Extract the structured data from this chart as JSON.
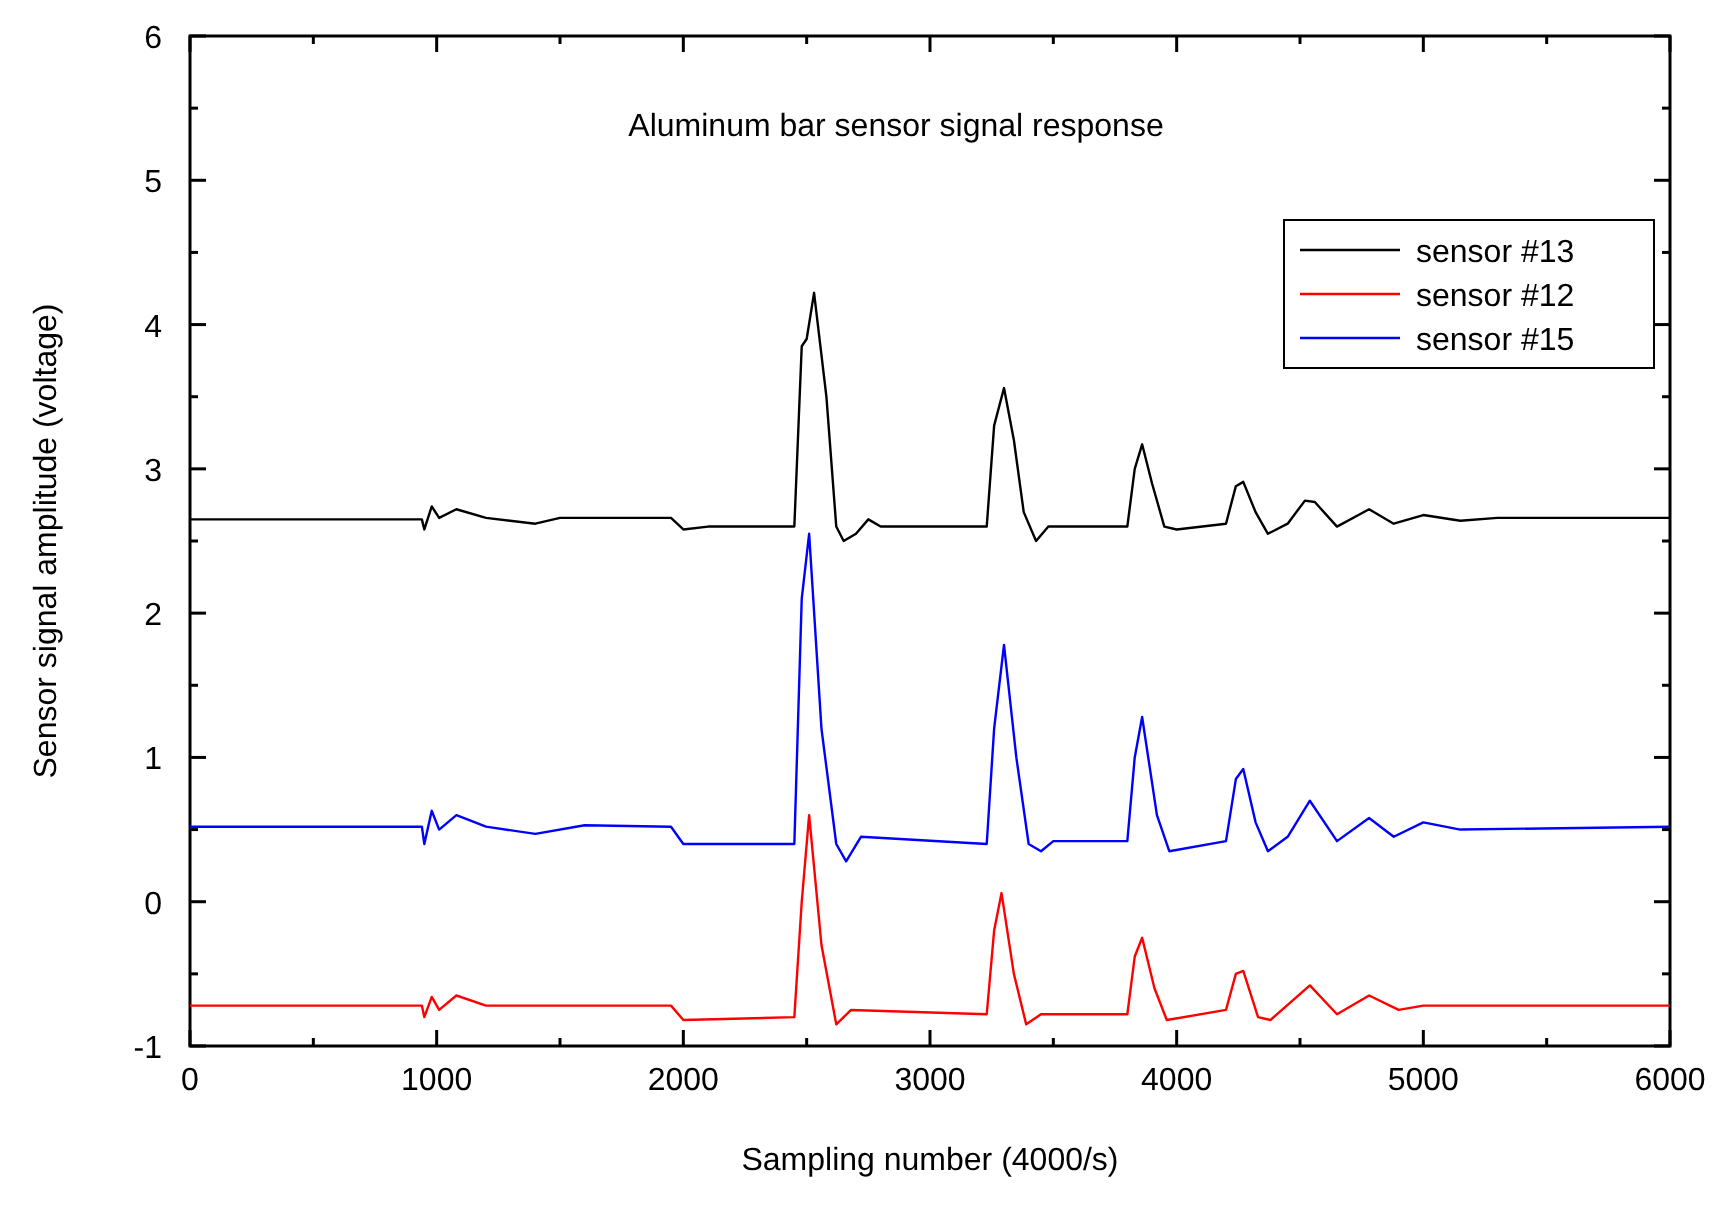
{
  "chart_data": {
    "type": "line",
    "title": "Aluminum bar sensor signal response",
    "xlabel": "Sampling number (4000/s)",
    "ylabel": "Sensor signal amplitude (voltage)",
    "xlim": [
      0,
      6000
    ],
    "ylim": [
      -1,
      6
    ],
    "xticks": [
      0,
      {
        "value": 500,
        "label": null
      },
      1000,
      {
        "value": 1500,
        "label": null
      },
      2000,
      {
        "value": 2500,
        "label": null
      },
      3000,
      {
        "value": 3500,
        "label": null
      },
      4000,
      {
        "value": 4500,
        "label": null
      },
      5000,
      {
        "value": 5500,
        "label": null
      },
      6000
    ],
    "yticks": [
      -1,
      {
        "value": -0.5,
        "label": null
      },
      0,
      {
        "value": 0.5,
        "label": null
      },
      1,
      {
        "value": 1.5,
        "label": null
      },
      2,
      {
        "value": 2.5,
        "label": null
      },
      3,
      {
        "value": 3.5,
        "label": null
      },
      4,
      {
        "value": 4.5,
        "label": null
      },
      5,
      {
        "value": 5.5,
        "label": null
      },
      6
    ],
    "legend": "top right",
    "grid": false,
    "marker": "none",
    "line_style": "solid",
    "series": [
      {
        "name": "sensor #13",
        "color": "#000000",
        "x": [
          0,
          940,
          950,
          980,
          1010,
          1080,
          1200,
          1400,
          1500,
          1950,
          2000,
          2100,
          2450,
          2480,
          2500,
          2530,
          2580,
          2620,
          2650,
          2700,
          2750,
          2800,
          3230,
          3260,
          3300,
          3340,
          3380,
          3430,
          3480,
          3800,
          3830,
          3860,
          3900,
          3950,
          4000,
          4200,
          4240,
          4270,
          4320,
          4370,
          4450,
          4520,
          4560,
          4650,
          4780,
          4880,
          5000,
          5150,
          5300,
          6000
        ],
        "values": [
          2.65,
          2.65,
          2.58,
          2.74,
          2.66,
          2.72,
          2.66,
          2.62,
          2.66,
          2.66,
          2.58,
          2.6,
          2.6,
          3.85,
          3.9,
          4.22,
          3.5,
          2.6,
          2.5,
          2.55,
          2.65,
          2.6,
          2.6,
          3.3,
          3.56,
          3.2,
          2.7,
          2.5,
          2.6,
          2.6,
          3.0,
          3.17,
          2.9,
          2.6,
          2.58,
          2.62,
          2.88,
          2.91,
          2.7,
          2.55,
          2.62,
          2.78,
          2.77,
          2.6,
          2.72,
          2.62,
          2.68,
          2.64,
          2.66,
          2.66
        ]
      },
      {
        "name": "sensor #12",
        "color": "#ff0000",
        "x": [
          0,
          940,
          950,
          980,
          1010,
          1080,
          1200,
          1950,
          2000,
          2450,
          2480,
          2510,
          2560,
          2620,
          2680,
          3230,
          3260,
          3290,
          3340,
          3390,
          3450,
          3800,
          3830,
          3860,
          3910,
          3960,
          4200,
          4240,
          4270,
          4330,
          4380,
          4540,
          4650,
          4780,
          4900,
          5000,
          6000
        ],
        "values": [
          -0.72,
          -0.72,
          -0.8,
          -0.66,
          -0.75,
          -0.65,
          -0.72,
          -0.72,
          -0.82,
          -0.8,
          0.0,
          0.6,
          -0.3,
          -0.85,
          -0.75,
          -0.78,
          -0.2,
          0.06,
          -0.5,
          -0.85,
          -0.78,
          -0.78,
          -0.38,
          -0.25,
          -0.6,
          -0.82,
          -0.75,
          -0.5,
          -0.48,
          -0.8,
          -0.82,
          -0.58,
          -0.78,
          -0.65,
          -0.75,
          -0.72,
          -0.72
        ]
      },
      {
        "name": "sensor #15",
        "color": "#0000ff",
        "x": [
          0,
          940,
          950,
          980,
          1010,
          1080,
          1200,
          1400,
          1600,
          1950,
          2000,
          2450,
          2480,
          2510,
          2560,
          2620,
          2660,
          2720,
          3230,
          3260,
          3300,
          3350,
          3400,
          3450,
          3500,
          3800,
          3830,
          3860,
          3920,
          3970,
          4200,
          4240,
          4270,
          4320,
          4370,
          4450,
          4540,
          4650,
          4780,
          4880,
          5000,
          5150,
          6000
        ],
        "values": [
          0.52,
          0.52,
          0.4,
          0.63,
          0.5,
          0.6,
          0.52,
          0.47,
          0.53,
          0.52,
          0.4,
          0.4,
          2.1,
          2.55,
          1.2,
          0.4,
          0.28,
          0.45,
          0.4,
          1.2,
          1.78,
          1.0,
          0.4,
          0.35,
          0.42,
          0.42,
          1.0,
          1.28,
          0.6,
          0.35,
          0.42,
          0.85,
          0.92,
          0.55,
          0.35,
          0.45,
          0.7,
          0.42,
          0.58,
          0.45,
          0.55,
          0.5,
          0.52
        ]
      }
    ]
  }
}
